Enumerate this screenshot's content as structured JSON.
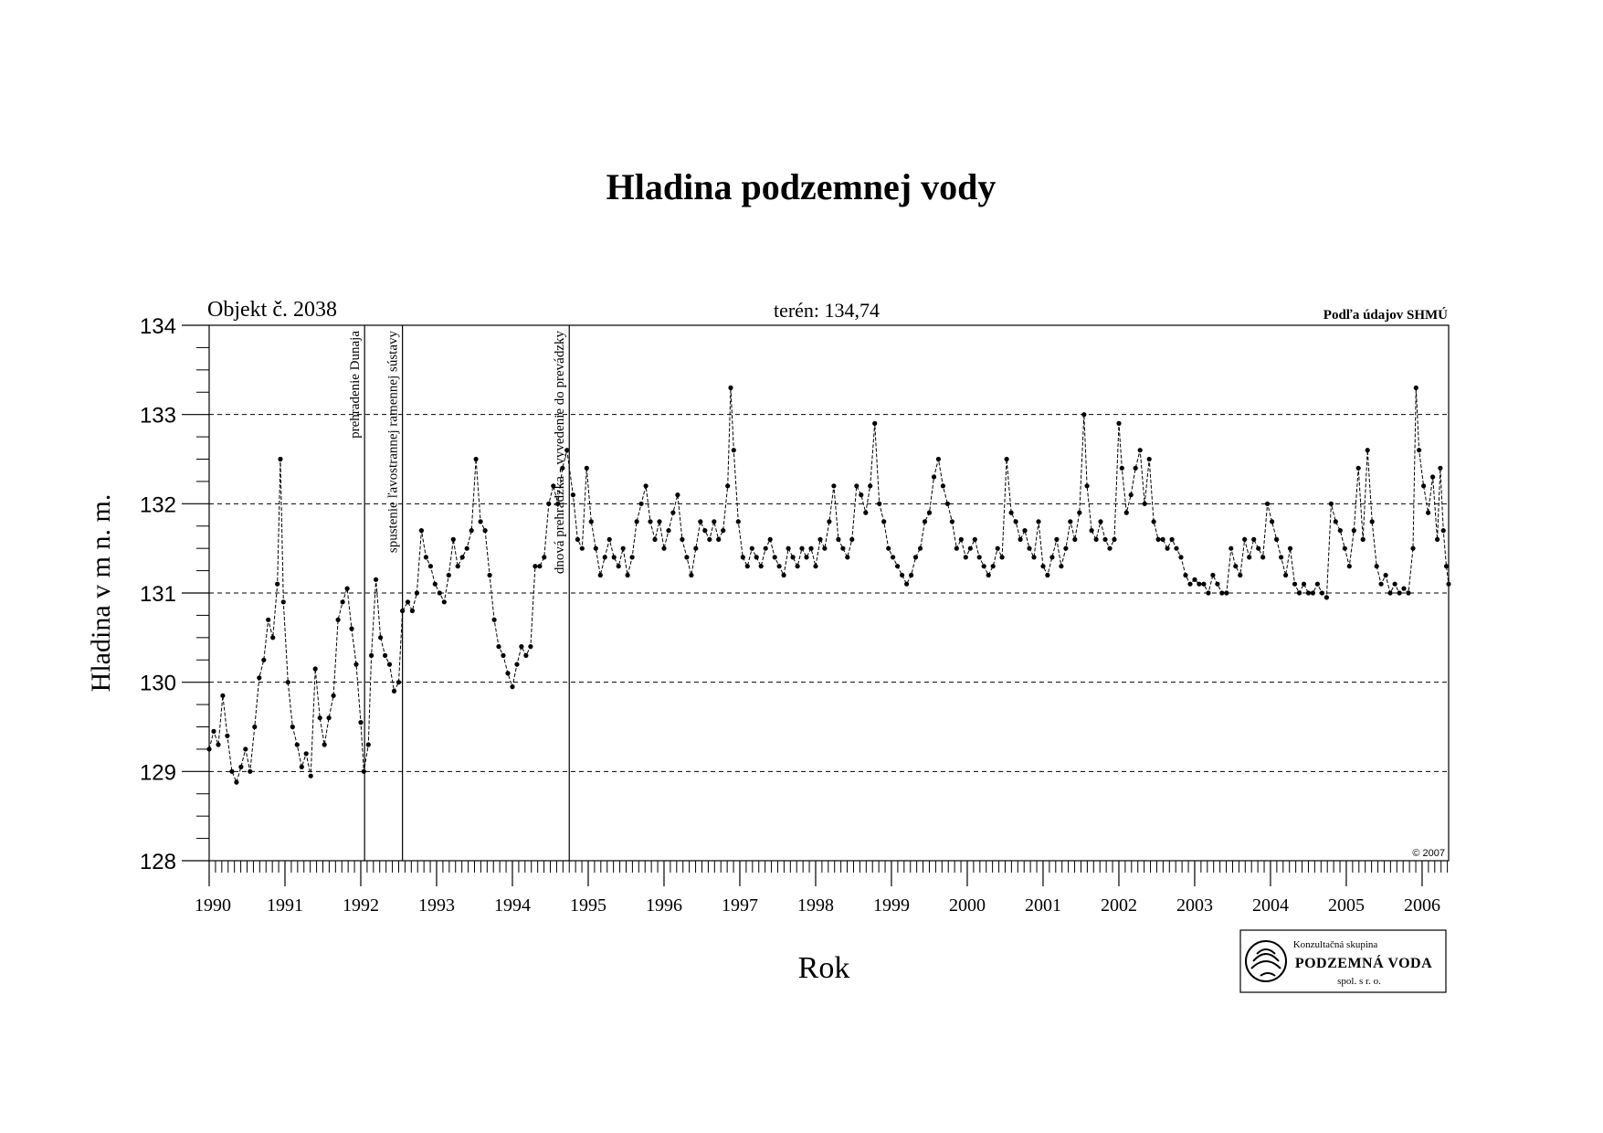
{
  "header": {
    "title": "Hladina podzemnej vody",
    "object_label": "Objekt č. 2038",
    "terrain_label": "terén: 134,74",
    "source_label": "Podľa údajov SHMÚ",
    "copyright": "© 2007"
  },
  "logo": {
    "line1": "Konzultačná skupina",
    "line2": "PODZEMNÁ VODA",
    "line3": "spol. s r. o.",
    "icon": "podzemna-voda-logo-icon"
  },
  "chart_data": {
    "type": "line",
    "title": "Hladina podzemnej vody",
    "xlabel": "Rok",
    "ylabel": "Hladina v m n. m.",
    "ylim": [
      128,
      134
    ],
    "xlim": [
      1990.0,
      2006.35
    ],
    "yticks": [
      "128",
      "129",
      "130",
      "131",
      "132",
      "133",
      "134"
    ],
    "xticks": [
      "1990",
      "1991",
      "1992",
      "1993",
      "1994",
      "1995",
      "1996",
      "1997",
      "1998",
      "1999",
      "2000",
      "2001",
      "2002",
      "2003",
      "2004",
      "2005",
      "2006"
    ],
    "grid": "horizontal dashed at 129, 130, 131, 132, 133",
    "line_style": "dashed with dot markers",
    "events": [
      {
        "x": 1992.05,
        "label": "prehradenie Dunaja"
      },
      {
        "x": 1992.55,
        "label": "spustenie ľavostrannej ramennej sústavy"
      },
      {
        "x": 1994.75,
        "label": "dnová prehrádzka - vyvedenie do prevádzky"
      }
    ],
    "series": [
      {
        "points": [
          [
            1990.0,
            129.25
          ],
          [
            1990.06,
            129.45
          ],
          [
            1990.12,
            129.3
          ],
          [
            1990.18,
            129.85
          ],
          [
            1990.24,
            129.4
          ],
          [
            1990.3,
            129.0
          ],
          [
            1990.36,
            128.88
          ],
          [
            1990.42,
            129.05
          ],
          [
            1990.48,
            129.25
          ],
          [
            1990.54,
            129.0
          ],
          [
            1990.6,
            129.5
          ],
          [
            1990.66,
            130.05
          ],
          [
            1990.72,
            130.25
          ],
          [
            1990.78,
            130.7
          ],
          [
            1990.84,
            130.5
          ],
          [
            1990.9,
            131.1
          ],
          [
            1990.94,
            132.5
          ],
          [
            1990.98,
            130.9
          ],
          [
            1991.04,
            130.0
          ],
          [
            1991.1,
            129.5
          ],
          [
            1991.16,
            129.3
          ],
          [
            1991.22,
            129.05
          ],
          [
            1991.28,
            129.2
          ],
          [
            1991.34,
            128.95
          ],
          [
            1991.4,
            130.15
          ],
          [
            1991.46,
            129.6
          ],
          [
            1991.52,
            129.3
          ],
          [
            1991.58,
            129.6
          ],
          [
            1991.64,
            129.85
          ],
          [
            1991.7,
            130.7
          ],
          [
            1991.76,
            130.9
          ],
          [
            1991.82,
            131.05
          ],
          [
            1991.88,
            130.6
          ],
          [
            1991.94,
            130.2
          ],
          [
            1992.0,
            129.55
          ],
          [
            1992.04,
            129.0
          ],
          [
            1992.1,
            129.3
          ],
          [
            1992.14,
            130.3
          ],
          [
            1992.2,
            131.15
          ],
          [
            1992.26,
            130.5
          ],
          [
            1992.32,
            130.3
          ],
          [
            1992.38,
            130.2
          ],
          [
            1992.44,
            129.9
          ],
          [
            1992.5,
            130.0
          ],
          [
            1992.55,
            130.8
          ],
          [
            1992.62,
            130.9
          ],
          [
            1992.68,
            130.8
          ],
          [
            1992.74,
            131.0
          ],
          [
            1992.8,
            131.7
          ],
          [
            1992.86,
            131.4
          ],
          [
            1992.92,
            131.3
          ],
          [
            1992.98,
            131.1
          ],
          [
            1993.04,
            131.0
          ],
          [
            1993.1,
            130.9
          ],
          [
            1993.16,
            131.2
          ],
          [
            1993.22,
            131.6
          ],
          [
            1993.28,
            131.3
          ],
          [
            1993.34,
            131.4
          ],
          [
            1993.4,
            131.5
          ],
          [
            1993.46,
            131.7
          ],
          [
            1993.52,
            132.5
          ],
          [
            1993.58,
            131.8
          ],
          [
            1993.64,
            131.7
          ],
          [
            1993.7,
            131.2
          ],
          [
            1993.76,
            130.7
          ],
          [
            1993.82,
            130.4
          ],
          [
            1993.88,
            130.3
          ],
          [
            1993.94,
            130.1
          ],
          [
            1994.0,
            129.95
          ],
          [
            1994.06,
            130.2
          ],
          [
            1994.12,
            130.4
          ],
          [
            1994.18,
            130.3
          ],
          [
            1994.24,
            130.4
          ],
          [
            1994.3,
            131.3
          ],
          [
            1994.36,
            131.3
          ],
          [
            1994.42,
            131.4
          ],
          [
            1994.48,
            132.0
          ],
          [
            1994.54,
            132.2
          ],
          [
            1994.6,
            132.0
          ],
          [
            1994.66,
            132.4
          ],
          [
            1994.72,
            132.6
          ],
          [
            1994.8,
            132.1
          ],
          [
            1994.86,
            131.6
          ],
          [
            1994.92,
            131.5
          ],
          [
            1994.98,
            132.4
          ],
          [
            1995.04,
            131.8
          ],
          [
            1995.1,
            131.5
          ],
          [
            1995.16,
            131.2
          ],
          [
            1995.22,
            131.4
          ],
          [
            1995.28,
            131.6
          ],
          [
            1995.34,
            131.4
          ],
          [
            1995.4,
            131.3
          ],
          [
            1995.46,
            131.5
          ],
          [
            1995.52,
            131.2
          ],
          [
            1995.58,
            131.4
          ],
          [
            1995.64,
            131.8
          ],
          [
            1995.7,
            132.0
          ],
          [
            1995.76,
            132.2
          ],
          [
            1995.82,
            131.8
          ],
          [
            1995.88,
            131.6
          ],
          [
            1995.94,
            131.8
          ],
          [
            1996.0,
            131.5
          ],
          [
            1996.06,
            131.7
          ],
          [
            1996.12,
            131.9
          ],
          [
            1996.18,
            132.1
          ],
          [
            1996.24,
            131.6
          ],
          [
            1996.3,
            131.4
          ],
          [
            1996.36,
            131.2
          ],
          [
            1996.42,
            131.5
          ],
          [
            1996.48,
            131.8
          ],
          [
            1996.54,
            131.7
          ],
          [
            1996.6,
            131.6
          ],
          [
            1996.66,
            131.8
          ],
          [
            1996.72,
            131.6
          ],
          [
            1996.78,
            131.7
          ],
          [
            1996.84,
            132.2
          ],
          [
            1996.88,
            133.3
          ],
          [
            1996.92,
            132.6
          ],
          [
            1996.98,
            131.8
          ],
          [
            1997.04,
            131.4
          ],
          [
            1997.1,
            131.3
          ],
          [
            1997.16,
            131.5
          ],
          [
            1997.22,
            131.4
          ],
          [
            1997.28,
            131.3
          ],
          [
            1997.34,
            131.5
          ],
          [
            1997.4,
            131.6
          ],
          [
            1997.46,
            131.4
          ],
          [
            1997.52,
            131.3
          ],
          [
            1997.58,
            131.2
          ],
          [
            1997.64,
            131.5
          ],
          [
            1997.7,
            131.4
          ],
          [
            1997.76,
            131.3
          ],
          [
            1997.82,
            131.5
          ],
          [
            1997.88,
            131.4
          ],
          [
            1997.94,
            131.5
          ],
          [
            1998.0,
            131.3
          ],
          [
            1998.06,
            131.6
          ],
          [
            1998.12,
            131.5
          ],
          [
            1998.18,
            131.8
          ],
          [
            1998.24,
            132.2
          ],
          [
            1998.3,
            131.6
          ],
          [
            1998.36,
            131.5
          ],
          [
            1998.42,
            131.4
          ],
          [
            1998.48,
            131.6
          ],
          [
            1998.54,
            132.2
          ],
          [
            1998.6,
            132.1
          ],
          [
            1998.66,
            131.9
          ],
          [
            1998.72,
            132.2
          ],
          [
            1998.78,
            132.9
          ],
          [
            1998.84,
            132.0
          ],
          [
            1998.9,
            131.8
          ],
          [
            1998.96,
            131.5
          ],
          [
            1999.02,
            131.4
          ],
          [
            1999.08,
            131.3
          ],
          [
            1999.14,
            131.2
          ],
          [
            1999.2,
            131.1
          ],
          [
            1999.26,
            131.2
          ],
          [
            1999.32,
            131.4
          ],
          [
            1999.38,
            131.5
          ],
          [
            1999.44,
            131.8
          ],
          [
            1999.5,
            131.9
          ],
          [
            1999.56,
            132.3
          ],
          [
            1999.62,
            132.5
          ],
          [
            1999.68,
            132.2
          ],
          [
            1999.74,
            132.0
          ],
          [
            1999.8,
            131.8
          ],
          [
            1999.86,
            131.5
          ],
          [
            1999.92,
            131.6
          ],
          [
            1999.98,
            131.4
          ],
          [
            2000.04,
            131.5
          ],
          [
            2000.1,
            131.6
          ],
          [
            2000.16,
            131.4
          ],
          [
            2000.22,
            131.3
          ],
          [
            2000.28,
            131.2
          ],
          [
            2000.34,
            131.3
          ],
          [
            2000.4,
            131.5
          ],
          [
            2000.46,
            131.4
          ],
          [
            2000.52,
            132.5
          ],
          [
            2000.58,
            131.9
          ],
          [
            2000.64,
            131.8
          ],
          [
            2000.7,
            131.6
          ],
          [
            2000.76,
            131.7
          ],
          [
            2000.82,
            131.5
          ],
          [
            2000.88,
            131.4
          ],
          [
            2000.94,
            131.8
          ],
          [
            2001.0,
            131.3
          ],
          [
            2001.06,
            131.2
          ],
          [
            2001.12,
            131.4
          ],
          [
            2001.18,
            131.6
          ],
          [
            2001.24,
            131.3
          ],
          [
            2001.3,
            131.5
          ],
          [
            2001.36,
            131.8
          ],
          [
            2001.42,
            131.6
          ],
          [
            2001.48,
            131.9
          ],
          [
            2001.54,
            133.0
          ],
          [
            2001.58,
            132.2
          ],
          [
            2001.64,
            131.7
          ],
          [
            2001.7,
            131.6
          ],
          [
            2001.76,
            131.8
          ],
          [
            2001.82,
            131.6
          ],
          [
            2001.88,
            131.5
          ],
          [
            2001.94,
            131.6
          ],
          [
            2002.0,
            132.9
          ],
          [
            2002.04,
            132.4
          ],
          [
            2002.1,
            131.9
          ],
          [
            2002.16,
            132.1
          ],
          [
            2002.22,
            132.4
          ],
          [
            2002.28,
            132.6
          ],
          [
            2002.34,
            132.0
          ],
          [
            2002.4,
            132.5
          ],
          [
            2002.46,
            131.8
          ],
          [
            2002.52,
            131.6
          ],
          [
            2002.58,
            131.6
          ],
          [
            2002.64,
            131.5
          ],
          [
            2002.7,
            131.6
          ],
          [
            2002.76,
            131.5
          ],
          [
            2002.82,
            131.4
          ],
          [
            2002.88,
            131.2
          ],
          [
            2002.94,
            131.1
          ],
          [
            2003.0,
            131.15
          ],
          [
            2003.06,
            131.1
          ],
          [
            2003.12,
            131.1
          ],
          [
            2003.18,
            131.0
          ],
          [
            2003.24,
            131.2
          ],
          [
            2003.3,
            131.1
          ],
          [
            2003.36,
            131.0
          ],
          [
            2003.42,
            131.0
          ],
          [
            2003.48,
            131.5
          ],
          [
            2003.54,
            131.3
          ],
          [
            2003.6,
            131.2
          ],
          [
            2003.66,
            131.6
          ],
          [
            2003.72,
            131.4
          ],
          [
            2003.78,
            131.6
          ],
          [
            2003.84,
            131.5
          ],
          [
            2003.9,
            131.4
          ],
          [
            2003.96,
            132.0
          ],
          [
            2004.02,
            131.8
          ],
          [
            2004.08,
            131.6
          ],
          [
            2004.14,
            131.4
          ],
          [
            2004.2,
            131.2
          ],
          [
            2004.26,
            131.5
          ],
          [
            2004.32,
            131.1
          ],
          [
            2004.38,
            131.0
          ],
          [
            2004.44,
            131.1
          ],
          [
            2004.5,
            131.0
          ],
          [
            2004.56,
            131.0
          ],
          [
            2004.62,
            131.1
          ],
          [
            2004.68,
            131.0
          ],
          [
            2004.74,
            130.95
          ],
          [
            2004.8,
            132.0
          ],
          [
            2004.86,
            131.8
          ],
          [
            2004.92,
            131.7
          ],
          [
            2004.98,
            131.5
          ],
          [
            2005.04,
            131.3
          ],
          [
            2005.1,
            131.7
          ],
          [
            2005.16,
            132.4
          ],
          [
            2005.22,
            131.6
          ],
          [
            2005.28,
            132.6
          ],
          [
            2005.34,
            131.8
          ],
          [
            2005.4,
            131.3
          ],
          [
            2005.46,
            131.1
          ],
          [
            2005.52,
            131.2
          ],
          [
            2005.58,
            131.0
          ],
          [
            2005.64,
            131.1
          ],
          [
            2005.7,
            131.0
          ],
          [
            2005.76,
            131.05
          ],
          [
            2005.82,
            131.0
          ],
          [
            2005.88,
            131.5
          ],
          [
            2005.92,
            133.3
          ],
          [
            2005.96,
            132.6
          ],
          [
            2006.02,
            132.2
          ],
          [
            2006.08,
            131.9
          ],
          [
            2006.14,
            132.3
          ],
          [
            2006.2,
            131.6
          ],
          [
            2006.24,
            132.4
          ],
          [
            2006.28,
            131.7
          ],
          [
            2006.32,
            131.3
          ],
          [
            2006.35,
            131.1
          ]
        ]
      }
    ]
  }
}
